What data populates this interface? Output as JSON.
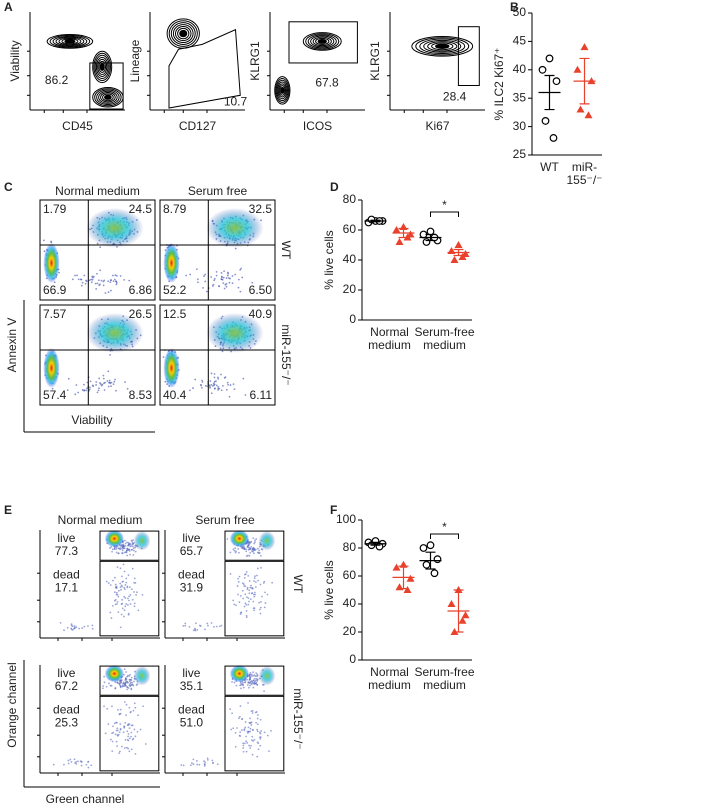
{
  "panels": {
    "A": {
      "label": "A",
      "plots": [
        {
          "y_label": "Viability",
          "x_label": "CD45",
          "gate": "86.2"
        },
        {
          "y_label": "Lineage",
          "x_label": "CD127",
          "gate": "10.7"
        },
        {
          "y_label": "KLRG1",
          "x_label": "ICOS",
          "gate": "67.8"
        },
        {
          "y_label": "KLRG1",
          "x_label": "Ki67",
          "gate": "28.4"
        }
      ]
    },
    "C": {
      "label": "C",
      "columns": [
        "Normal medium",
        "Serum free"
      ],
      "rows": [
        "WT",
        "miR-155⁻/⁻"
      ],
      "y_label": "Annexin V",
      "x_label": "Viability",
      "quadrants": [
        [
          [
            "1.79",
            "24.5",
            "66.9",
            "6.86"
          ],
          [
            "8.79",
            "32.5",
            "52.2",
            "6.50"
          ]
        ],
        [
          [
            "7.57",
            "26.5",
            "57.4",
            "8.53"
          ],
          [
            "12.5",
            "40.9",
            "40.4",
            "6.11"
          ]
        ]
      ]
    },
    "E": {
      "label": "E",
      "columns": [
        "Normal medium",
        "Serum free"
      ],
      "rows": [
        "WT",
        "miR-155⁻/⁻"
      ],
      "y_label": "Orange channel",
      "x_label": "Green channel",
      "gate_names": [
        "live",
        "dead"
      ],
      "gates": [
        [
          [
            "77.3",
            "17.1"
          ],
          [
            "65.7",
            "31.9"
          ]
        ],
        [
          [
            "67.2",
            "25.3"
          ],
          [
            "35.1",
            "51.0"
          ]
        ]
      ]
    }
  },
  "chart_data": [
    {
      "panel": "B",
      "type": "scatter",
      "y_label": "% ILC2 Ki67⁺",
      "ylim": [
        25,
        50
      ],
      "yticks": [
        25,
        30,
        35,
        40,
        45,
        50
      ],
      "categories": [
        {
          "label": [
            "WT"
          ],
          "groups": [
            {
              "color": "#000000",
              "marker": "circle",
              "values": [
                42,
                40,
                38,
                31,
                28
              ],
              "mean": 36,
              "error": 3
            }
          ]
        },
        {
          "label": [
            "miR-",
            "155⁻/⁻"
          ],
          "groups": [
            {
              "color": "#e8412c",
              "marker": "triangle",
              "values": [
                44,
                40,
                38,
                33,
                32
              ],
              "mean": 38,
              "error": 4
            }
          ]
        }
      ]
    },
    {
      "panel": "D",
      "type": "scatter",
      "y_label": "% live cells",
      "ylim": [
        0,
        80
      ],
      "yticks": [
        0,
        20,
        40,
        60,
        80
      ],
      "significance": "*",
      "categories": [
        {
          "label": [
            "Normal",
            "medium"
          ],
          "groups": [
            {
              "color": "#000000",
              "marker": "circle",
              "values": [
                66,
                65,
                66,
                67,
                66
              ],
              "mean": 66,
              "error": 0.5
            },
            {
              "color": "#e8412c",
              "marker": "triangle",
              "values": [
                62,
                60,
                57,
                52,
                55
              ],
              "mean": 58,
              "error": 3
            }
          ]
        },
        {
          "label": [
            "Serum-free",
            "medium"
          ],
          "groups": [
            {
              "color": "#000000",
              "marker": "circle",
              "values": [
                59,
                57,
                53,
                52,
                55
              ],
              "mean": 55,
              "error": 2
            },
            {
              "color": "#e8412c",
              "marker": "triangle",
              "values": [
                50,
                46,
                44,
                40,
                42
              ],
              "mean": 45,
              "error": 2
            }
          ]
        }
      ]
    },
    {
      "panel": "F",
      "type": "scatter",
      "y_label": "% live cells",
      "ylim": [
        0,
        100
      ],
      "yticks": [
        0,
        20,
        40,
        60,
        80,
        100
      ],
      "significance": "*",
      "categories": [
        {
          "label": [
            "Normal",
            "medium"
          ],
          "groups": [
            {
              "color": "#000000",
              "marker": "circle",
              "values": [
                85,
                84,
                83,
                82,
                81
              ],
              "mean": 83,
              "error": 1
            },
            {
              "color": "#e8412c",
              "marker": "triangle",
              "values": [
                68,
                66,
                58,
                52,
                50
              ],
              "mean": 59,
              "error": 8
            }
          ]
        },
        {
          "label": [
            "Serum-free",
            "medium"
          ],
          "groups": [
            {
              "color": "#000000",
              "marker": "circle",
              "values": [
                82,
                80,
                72,
                68,
                62
              ],
              "mean": 71,
              "error": 6
            },
            {
              "color": "#e8412c",
              "marker": "triangle",
              "values": [
                50,
                40,
                32,
                20,
                28
              ],
              "mean": 35,
              "error": 15
            }
          ]
        }
      ]
    }
  ]
}
